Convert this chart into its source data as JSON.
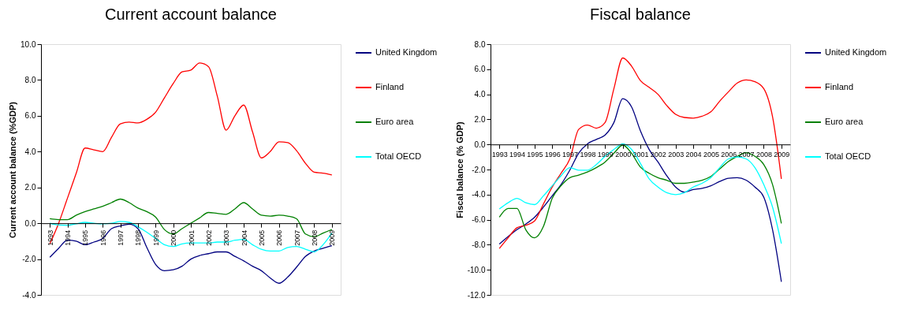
{
  "chart_data": [
    {
      "type": "line",
      "title": "Current account balance",
      "ylabel": "Current account balance (%GDP)",
      "x": [
        1993,
        1993.5,
        1994,
        1994.5,
        1995,
        1995.5,
        1996,
        1996.5,
        1997,
        1997.5,
        1998,
        1998.5,
        1999,
        1999.5,
        2000,
        2000.5,
        2001,
        2001.5,
        2002,
        2002.5,
        2003,
        2003.5,
        2004,
        2004.5,
        2005,
        2005.5,
        2006,
        2006.5,
        2007,
        2007.5,
        2008,
        2008.5,
        2009
      ],
      "xlim": [
        1992.5,
        2009.5
      ],
      "xticks": [
        1993,
        1994,
        1995,
        1996,
        1997,
        1998,
        1999,
        2000,
        2001,
        2002,
        2003,
        2004,
        2005,
        2006,
        2007,
        2008,
        2009
      ],
      "ylim": [
        -4.0,
        10.0
      ],
      "yticks": [
        {
          "value": -4,
          "label": "-4.0"
        },
        {
          "value": -2,
          "label": "-2.0"
        },
        {
          "value": 0,
          "label": "0.0"
        },
        {
          "value": 2,
          "label": "2.0"
        },
        {
          "value": 4,
          "label": "4.0"
        },
        {
          "value": 6,
          "label": "6.0"
        },
        {
          "value": 8,
          "label": "8.0"
        },
        {
          "value": 10,
          "label": "10.0"
        }
      ],
      "grid": false,
      "legend": "right",
      "marker": "none",
      "line_style": "solid",
      "series": [
        {
          "name": "United Kingdom",
          "color": "#000080",
          "values": [
            -1.9,
            -1.4,
            -0.95,
            -1.0,
            -1.2,
            -1.05,
            -0.85,
            -0.3,
            -0.15,
            -0.05,
            -0.3,
            -1.35,
            -2.3,
            -2.65,
            -2.6,
            -2.4,
            -2.0,
            -1.8,
            -1.7,
            -1.6,
            -1.6,
            -1.85,
            -2.1,
            -2.4,
            -2.65,
            -3.05,
            -3.35,
            -3.0,
            -2.45,
            -1.85,
            -1.55,
            -1.4,
            -1.25
          ]
        },
        {
          "name": "Finland",
          "color": "#ff0000",
          "values": [
            -1.15,
            0.0,
            1.4,
            2.8,
            4.2,
            4.1,
            4.0,
            4.8,
            5.55,
            5.65,
            5.6,
            5.8,
            6.2,
            7.0,
            7.8,
            8.45,
            8.55,
            8.95,
            8.75,
            7.1,
            5.2,
            6.0,
            6.6,
            5.1,
            3.65,
            4.0,
            4.55,
            4.5,
            4.05,
            3.35,
            2.85,
            2.8,
            2.7
          ]
        },
        {
          "name": "Euro area",
          "color": "#008000",
          "values": [
            0.25,
            0.2,
            0.2,
            0.45,
            0.65,
            0.8,
            0.95,
            1.15,
            1.35,
            1.15,
            0.85,
            0.65,
            0.35,
            -0.35,
            -0.6,
            -0.3,
            0.0,
            0.3,
            0.6,
            0.55,
            0.5,
            0.8,
            1.15,
            0.8,
            0.45,
            0.4,
            0.45,
            0.4,
            0.25,
            -0.6,
            -0.75,
            -0.55,
            -0.35
          ]
        },
        {
          "name": "Total OECD",
          "color": "#00ffff",
          "values": [
            0.0,
            -0.1,
            -0.12,
            -0.03,
            0.05,
            0.0,
            -0.03,
            0.0,
            0.1,
            0.05,
            -0.2,
            -0.5,
            -0.85,
            -1.2,
            -1.3,
            -1.15,
            -1.1,
            -1.1,
            -1.1,
            -1.05,
            -1.05,
            -0.95,
            -0.9,
            -1.2,
            -1.45,
            -1.55,
            -1.55,
            -1.35,
            -1.3,
            -1.45,
            -1.6,
            -1.2,
            -0.55
          ]
        }
      ]
    },
    {
      "type": "line",
      "title": "Fiscal balance",
      "ylabel": "Fiscal balance (% GDP)",
      "x": [
        1993,
        1993.5,
        1994,
        1994.5,
        1995,
        1995.5,
        1996,
        1996.5,
        1997,
        1997.5,
        1998,
        1998.5,
        1999,
        1999.5,
        2000,
        2000.5,
        2001,
        2001.5,
        2002,
        2002.5,
        2003,
        2003.5,
        2004,
        2004.5,
        2005,
        2005.5,
        2006,
        2006.5,
        2007,
        2007.5,
        2008,
        2008.5,
        2009
      ],
      "xlim": [
        1992.5,
        2009.5
      ],
      "xticks": [
        1993,
        1994,
        1995,
        1996,
        1997,
        1998,
        1999,
        2000,
        2001,
        2002,
        2003,
        2004,
        2005,
        2006,
        2007,
        2008,
        2009
      ],
      "ylim": [
        -12.0,
        8.0
      ],
      "yticks": [
        {
          "value": -12,
          "label": "-12.0"
        },
        {
          "value": -10,
          "label": "-10.0"
        },
        {
          "value": -8,
          "label": "-8.0"
        },
        {
          "value": -6,
          "label": "-6.0"
        },
        {
          "value": -4,
          "label": "-4.0"
        },
        {
          "value": -2,
          "label": "-2.0"
        },
        {
          "value": 0,
          "label": "0.0"
        },
        {
          "value": 2,
          "label": "2.0"
        },
        {
          "value": 4,
          "label": "4.0"
        },
        {
          "value": 6,
          "label": "6.0"
        },
        {
          "value": 8,
          "label": "8.0"
        }
      ],
      "grid": false,
      "legend": "right",
      "marker": "none",
      "line_style": "solid",
      "series": [
        {
          "name": "United Kingdom",
          "color": "#000080",
          "values": [
            -7.95,
            -7.35,
            -6.8,
            -6.35,
            -5.8,
            -5.0,
            -4.1,
            -3.2,
            -2.05,
            -0.7,
            0.05,
            0.4,
            0.75,
            1.75,
            3.65,
            3.0,
            1.1,
            -0.4,
            -1.4,
            -2.5,
            -3.4,
            -3.8,
            -3.6,
            -3.5,
            -3.3,
            -2.95,
            -2.7,
            -2.65,
            -2.85,
            -3.4,
            -4.2,
            -6.8,
            -10.95
          ]
        },
        {
          "name": "Finland",
          "color": "#ff0000",
          "values": [
            -8.3,
            -7.45,
            -6.65,
            -6.45,
            -6.1,
            -4.75,
            -3.4,
            -2.3,
            -1.15,
            1.2,
            1.55,
            1.3,
            1.75,
            4.45,
            6.9,
            6.25,
            5.1,
            4.55,
            4.0,
            3.1,
            2.4,
            2.15,
            2.1,
            2.25,
            2.6,
            3.45,
            4.2,
            4.9,
            5.15,
            5.0,
            4.45,
            2.2,
            -2.75
          ]
        },
        {
          "name": "Euro area",
          "color": "#008000",
          "values": [
            -5.8,
            -5.1,
            -5.1,
            -6.8,
            -7.45,
            -6.55,
            -4.3,
            -3.3,
            -2.65,
            -2.45,
            -2.2,
            -1.85,
            -1.4,
            -0.7,
            -0.05,
            -0.7,
            -1.8,
            -2.3,
            -2.65,
            -2.85,
            -3.1,
            -3.1,
            -3.0,
            -2.85,
            -2.55,
            -1.95,
            -1.35,
            -0.95,
            -0.65,
            -0.95,
            -1.6,
            -3.2,
            -6.3
          ]
        },
        {
          "name": "Total OECD",
          "color": "#00ffff",
          "values": [
            -5.15,
            -4.65,
            -4.3,
            -4.65,
            -4.8,
            -4.1,
            -3.3,
            -2.5,
            -1.85,
            -2.05,
            -2.05,
            -1.6,
            -0.95,
            -0.4,
            0.05,
            -0.4,
            -1.5,
            -2.75,
            -3.4,
            -3.85,
            -4.0,
            -3.85,
            -3.4,
            -3.1,
            -2.65,
            -1.85,
            -1.15,
            -1.0,
            -1.15,
            -1.85,
            -3.2,
            -5.0,
            -7.9
          ]
        }
      ]
    }
  ]
}
